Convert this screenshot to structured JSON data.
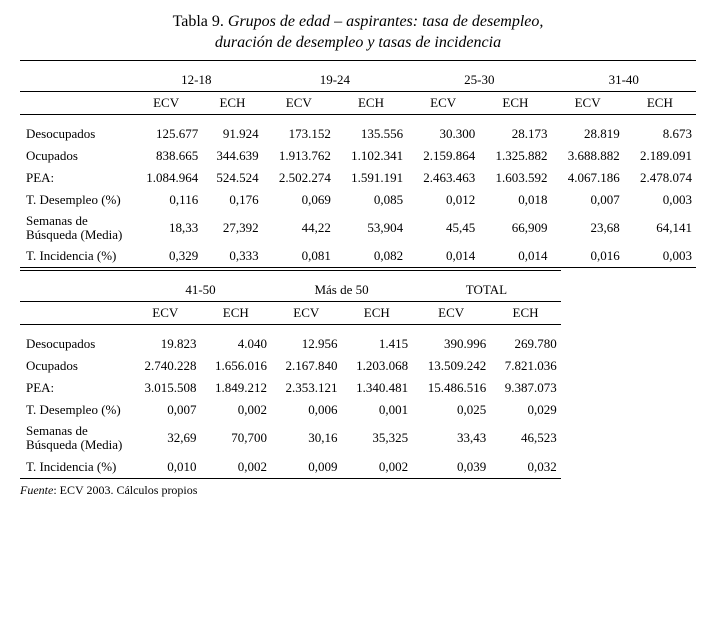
{
  "title": {
    "prefix": "Tabla 9.",
    "line1": "Grupos de edad – aspirantes: tasa de desempleo,",
    "line2": "duración de desempleo y tasas de incidencia"
  },
  "labels": {
    "ecv": "ECV",
    "ech": "ECH",
    "desocupados": "Desocupados",
    "ocupados": "Ocupados",
    "pea": "PEA:",
    "t_desempleo": "T. Desempleo (%)",
    "semanas_l1": "Semanas de",
    "semanas_l2": "Búsqueda (Media)",
    "t_incidencia": "T. Incidencia (%)"
  },
  "groups_top": [
    "12-18",
    "19-24",
    "25-30",
    "31-40"
  ],
  "groups_bot": [
    "41-50",
    "Más de 50",
    "TOTAL"
  ],
  "top": {
    "desocupados": [
      "125.677",
      "91.924",
      "173.152",
      "135.556",
      "30.300",
      "28.173",
      "28.819",
      "8.673"
    ],
    "ocupados": [
      "838.665",
      "344.639",
      "1.913.762",
      "1.102.341",
      "2.159.864",
      "1.325.882",
      "3.688.882",
      "2.189.091"
    ],
    "pea": [
      "1.084.964",
      "524.524",
      "2.502.274",
      "1.591.191",
      "2.463.463",
      "1.603.592",
      "4.067.186",
      "2.478.074"
    ],
    "t_desempleo": [
      "0,116",
      "0,176",
      "0,069",
      "0,085",
      "0,012",
      "0,018",
      "0,007",
      "0,003"
    ],
    "semanas": [
      "18,33",
      "27,392",
      "44,22",
      "53,904",
      "45,45",
      "66,909",
      "23,68",
      "64,141"
    ],
    "t_incidencia": [
      "0,329",
      "0,333",
      "0,081",
      "0,082",
      "0,014",
      "0,014",
      "0,016",
      "0,003"
    ]
  },
  "bot": {
    "desocupados": [
      "19.823",
      "4.040",
      "12.956",
      "1.415",
      "390.996",
      "269.780"
    ],
    "ocupados": [
      "2.740.228",
      "1.656.016",
      "2.167.840",
      "1.203.068",
      "13.509.242",
      "7.821.036"
    ],
    "pea": [
      "3.015.508",
      "1.849.212",
      "2.353.121",
      "1.340.481",
      "15.486.516",
      "9.387.073"
    ],
    "t_desempleo": [
      "0,007",
      "0,002",
      "0,006",
      "0,001",
      "0,025",
      "0,029"
    ],
    "semanas": [
      "32,69",
      "70,700",
      "30,16",
      "35,325",
      "33,43",
      "46,523"
    ],
    "t_incidencia": [
      "0,010",
      "0,002",
      "0,009",
      "0,002",
      "0,039",
      "0,032"
    ]
  },
  "source": {
    "fuente": "Fuente",
    "text": ": ECV 2003. Cálculos propios"
  }
}
